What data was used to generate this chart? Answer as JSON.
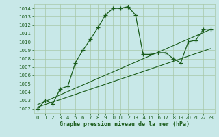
{
  "xlabel": "Graphe pression niveau de la mer (hPa)",
  "bg_color": "#c8e8e8",
  "grid_color": "#a8c8a8",
  "line_color": "#1a5c1a",
  "marker": "+",
  "ylim": [
    1001.5,
    1014.5
  ],
  "xlim": [
    -0.5,
    23.5
  ],
  "yticks": [
    1002,
    1003,
    1004,
    1005,
    1006,
    1007,
    1008,
    1009,
    1010,
    1011,
    1012,
    1013,
    1014
  ],
  "xticks": [
    0,
    1,
    2,
    3,
    4,
    5,
    6,
    7,
    8,
    9,
    10,
    11,
    12,
    13,
    14,
    15,
    16,
    17,
    18,
    19,
    20,
    21,
    22,
    23
  ],
  "series1_x": [
    0,
    1,
    2,
    3,
    4,
    5,
    6,
    7,
    8,
    9,
    10,
    11,
    12,
    13,
    14,
    15,
    16,
    17,
    18,
    19,
    20,
    21,
    22,
    23
  ],
  "series1_y": [
    1002.0,
    1003.0,
    1002.6,
    1004.4,
    1004.7,
    1007.5,
    1009.0,
    1010.3,
    1011.7,
    1013.2,
    1014.0,
    1014.0,
    1014.2,
    1013.2,
    1008.5,
    1008.5,
    1008.7,
    1008.7,
    1008.0,
    1007.5,
    1010.0,
    1010.2,
    1011.5,
    1011.5
  ],
  "trend1_x": [
    0,
    23
  ],
  "trend1_y": [
    1002.2,
    1009.2
  ],
  "trend2_x": [
    0,
    23
  ],
  "trend2_y": [
    1002.5,
    1011.5
  ],
  "xlabel_fontsize": 6,
  "tick_fontsize": 5,
  "linewidth": 0.9,
  "trend_linewidth": 0.8,
  "markersize": 4,
  "markeredgewidth": 0.9
}
